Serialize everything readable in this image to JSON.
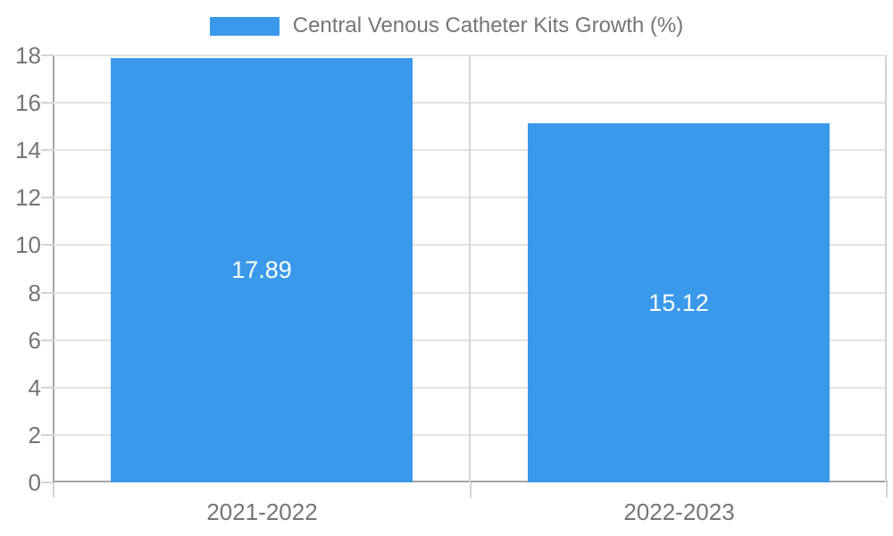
{
  "legend": {
    "label": "Central Venous Catheter Kits Growth (%)"
  },
  "chart_data": {
    "type": "bar",
    "title": "Central Venous Catheter Kits Growth (%)",
    "categories": [
      "2021-2022",
      "2022-2023"
    ],
    "series": [
      {
        "name": "Central Venous Catheter Kits Growth (%)",
        "values": [
          17.89,
          15.12
        ]
      }
    ],
    "value_labels": [
      "17.89",
      "15.12"
    ],
    "xlabel": "",
    "ylabel": "",
    "ylim": [
      0,
      18
    ],
    "yticks": [
      0,
      2,
      4,
      6,
      8,
      10,
      12,
      14,
      16,
      18
    ],
    "grid": true,
    "legend_position": "top-center",
    "colors": {
      "bar": "#3B99EC",
      "axis_text": "#757575",
      "value_text": "#FFFFFF",
      "gridline": "#E3E3E3",
      "axis_line": "#A5A5A5",
      "tick_line": "#D4D4D4"
    }
  }
}
